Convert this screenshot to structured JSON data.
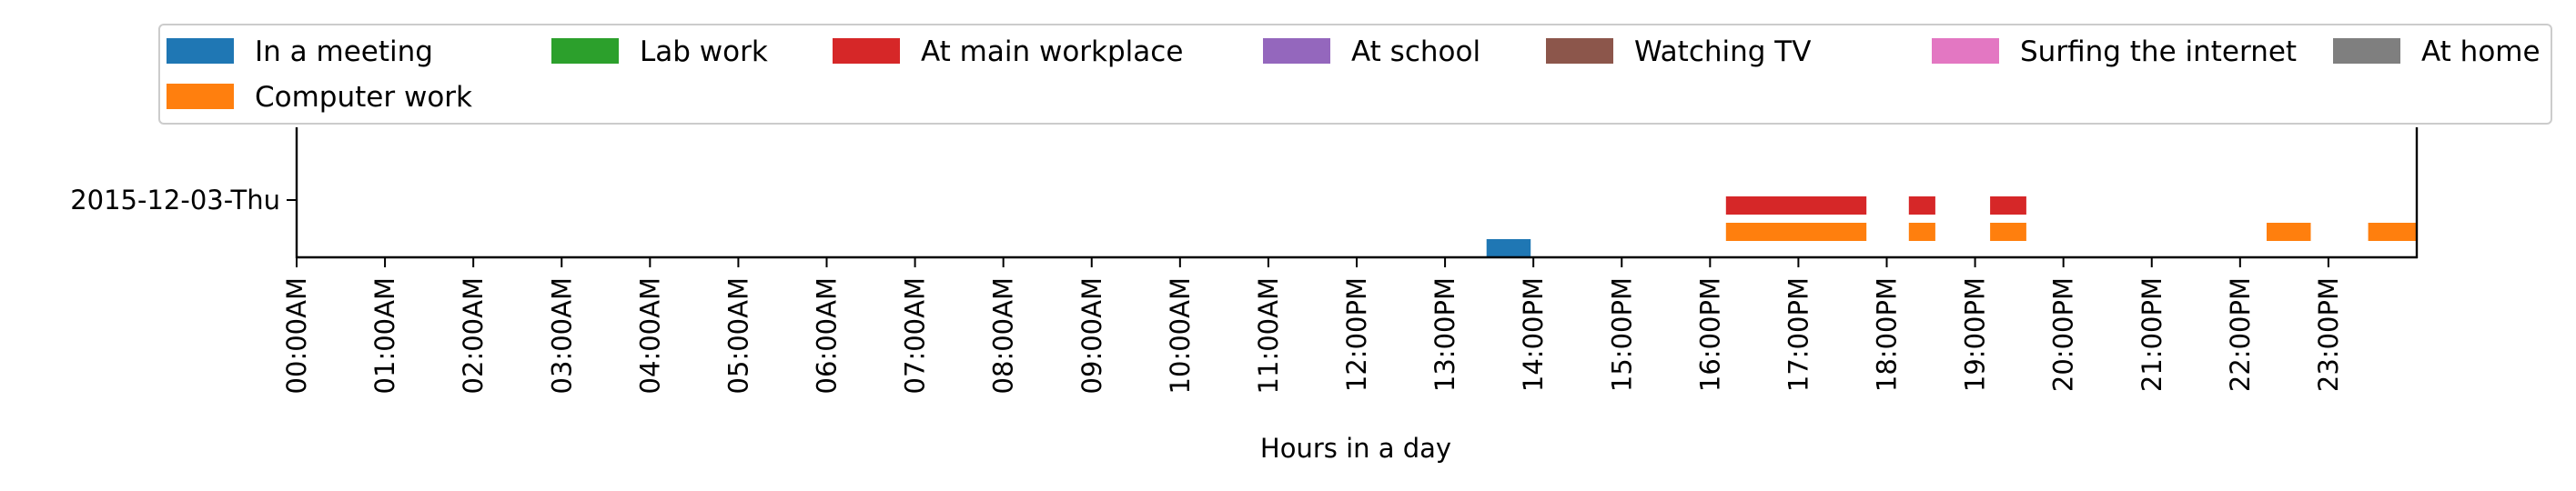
{
  "chart_data": {
    "type": "bar",
    "subtype": "broken-barh timeline",
    "title": "",
    "xlabel": "Hours in a day",
    "ylabel": "",
    "xlim_hours": [
      0,
      24
    ],
    "x_tick_labels": [
      "00:00AM",
      "01:00AM",
      "02:00AM",
      "03:00AM",
      "04:00AM",
      "05:00AM",
      "06:00AM",
      "07:00AM",
      "08:00AM",
      "09:00AM",
      "10:00AM",
      "11:00AM",
      "12:00PM",
      "13:00PM",
      "14:00PM",
      "15:00PM",
      "16:00PM",
      "17:00PM",
      "18:00PM",
      "19:00PM",
      "20:00PM",
      "21:00PM",
      "22:00PM",
      "23:00PM"
    ],
    "y_tick_labels": [
      "2015-12-03-Thu"
    ],
    "legend_placement": "top",
    "legend_columns": 7,
    "grid": false,
    "categories": [
      {
        "name": "In a meeting",
        "color": "#1f77b4"
      },
      {
        "name": "Computer work",
        "color": "#ff7f0e"
      },
      {
        "name": "Lab work",
        "color": "#2ca02c"
      },
      {
        "name": "At main workplace",
        "color": "#d62728"
      },
      {
        "name": "At school",
        "color": "#9467bd"
      },
      {
        "name": "Watching TV",
        "color": "#8c564b"
      },
      {
        "name": "Surfing the internet",
        "color": "#e377c2"
      },
      {
        "name": "At home",
        "color": "#7f7f7f"
      }
    ],
    "series": [
      {
        "name": "In a meeting",
        "row": 0,
        "intervals": [
          [
            13.47,
            13.97
          ]
        ]
      },
      {
        "name": "Computer work",
        "row": 1,
        "intervals": [
          [
            16.18,
            17.77
          ],
          [
            18.25,
            18.55
          ],
          [
            19.17,
            19.58
          ],
          [
            22.3,
            22.8
          ],
          [
            23.45,
            24.0
          ]
        ]
      },
      {
        "name": "At main workplace",
        "row": 2,
        "intervals": [
          [
            16.18,
            17.77
          ],
          [
            18.25,
            18.55
          ],
          [
            19.17,
            19.58
          ]
        ]
      }
    ]
  }
}
